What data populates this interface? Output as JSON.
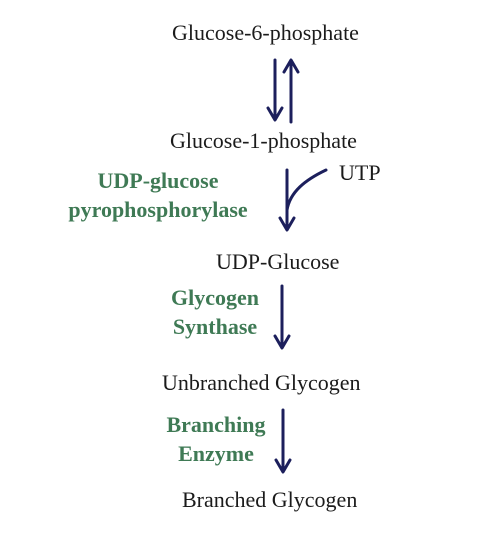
{
  "nodes": {
    "glucose_6_phosphate": "Glucose-6-phosphate",
    "glucose_1_phosphate": "Glucose-1-phosphate",
    "utp": "UTP",
    "udp_glucose": "UDP-Glucose",
    "unbranched_glycogen": "Unbranched Glycogen",
    "branched_glycogen": "Branched Glycogen"
  },
  "enzymes": {
    "udp_glucose_pyrophosphorylase": [
      "UDP-glucose",
      "pyrophosphorylase"
    ],
    "glycogen_synthase": [
      "Glycogen",
      "Synthase"
    ],
    "branching_enzyme": [
      "Branching",
      "Enzyme"
    ]
  },
  "colors": {
    "arrow": "#1c1f5c",
    "enzyme_text": "#3f7a55",
    "node_text": "#1b1b1b"
  }
}
